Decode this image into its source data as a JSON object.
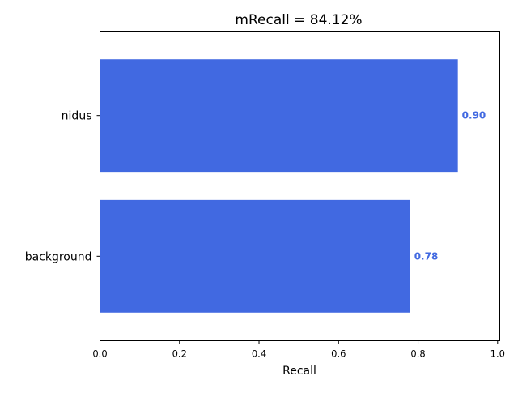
{
  "chart_data": {
    "type": "bar",
    "orientation": "horizontal",
    "title": "mRecall = 84.12%",
    "xlabel": "Recall",
    "ylabel": "",
    "categories": [
      "nidus",
      "background"
    ],
    "values": [
      0.9,
      0.78
    ],
    "value_labels": [
      "0.90",
      "0.78"
    ],
    "xlim": [
      0.0,
      1.0
    ],
    "xticks": [
      0.0,
      0.2,
      0.4,
      0.6,
      0.8,
      1.0
    ],
    "xtick_labels": [
      "0.0",
      "0.2",
      "0.4",
      "0.6",
      "0.8",
      "1.0"
    ],
    "grid": false,
    "legend": "none",
    "bar_color": "#4169e1",
    "label_color": "#4169e1"
  }
}
